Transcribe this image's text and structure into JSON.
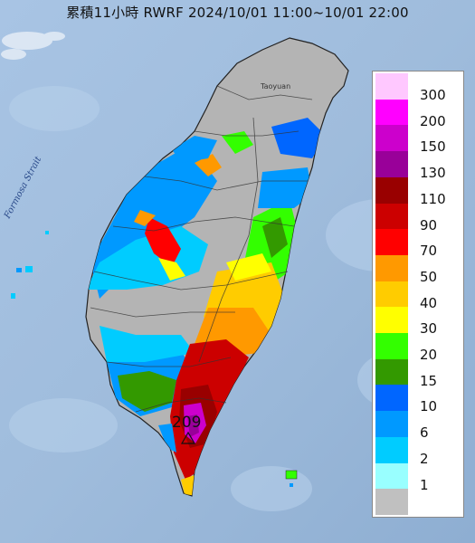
{
  "title": "累積11小時 RWRF 2024/10/01 11:00~10/01 22:00",
  "map_labels": {
    "strait": "Formosa Strait",
    "city": "Taoyuan",
    "max_value": "209"
  },
  "legend": [
    {
      "label": "300",
      "color": "#ffc8ff"
    },
    {
      "label": "200",
      "color": "#ff00ff"
    },
    {
      "label": "150",
      "color": "#cc00cc"
    },
    {
      "label": "130",
      "color": "#990099"
    },
    {
      "label": "110",
      "color": "#990000"
    },
    {
      "label": "90",
      "color": "#cc0000"
    },
    {
      "label": "70",
      "color": "#ff0000"
    },
    {
      "label": "50",
      "color": "#ff9900"
    },
    {
      "label": "40",
      "color": "#ffcc00"
    },
    {
      "label": "30",
      "color": "#ffff00"
    },
    {
      "label": "20",
      "color": "#33ff00"
    },
    {
      "label": "15",
      "color": "#339900"
    },
    {
      "label": "10",
      "color": "#0066ff"
    },
    {
      "label": "6",
      "color": "#0099ff"
    },
    {
      "label": "2",
      "color": "#00ccff"
    },
    {
      "label": "1",
      "color": "#99ffff"
    },
    {
      "label": "",
      "color": "#c0c0c0"
    }
  ]
}
